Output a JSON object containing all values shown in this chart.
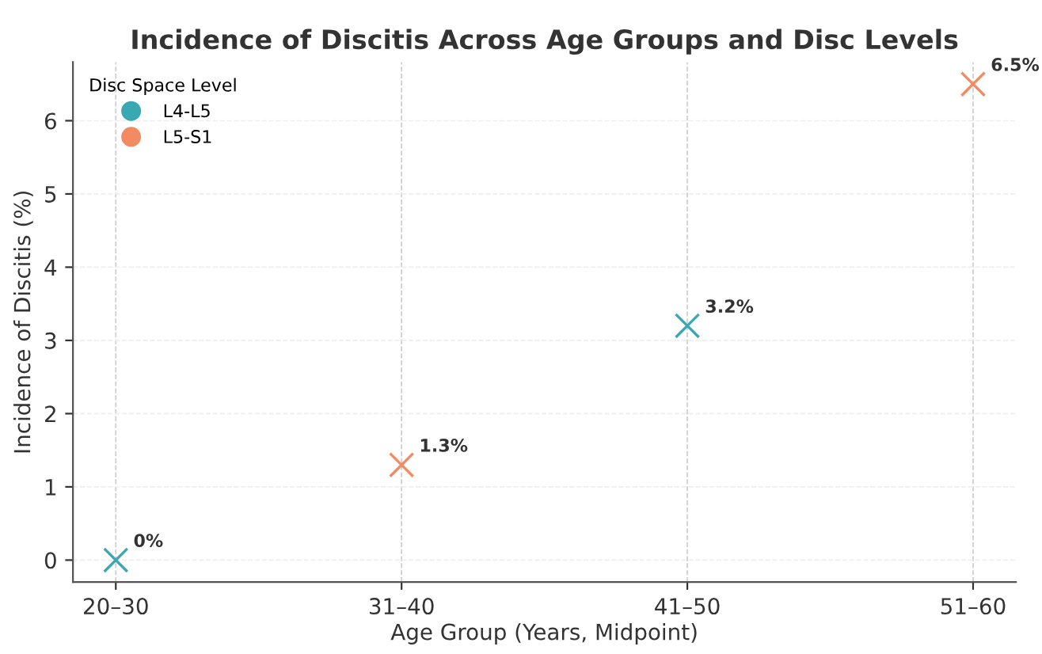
{
  "chart_data": {
    "type": "scatter",
    "title": "Incidence of Discitis Across Age Groups and Disc Levels",
    "xlabel": "Age Group (Years, Midpoint)",
    "ylabel": "Incidence of Discitis (%)",
    "legend_title": "Disc Space Level",
    "categories": [
      "20–30",
      "31–40",
      "41–50",
      "51–60"
    ],
    "series": [
      {
        "name": "L4-L5",
        "color": "#3aa8b2",
        "values": [
          0,
          null,
          3.2,
          null
        ],
        "value_labels": [
          "0%",
          null,
          "3.2%",
          null
        ]
      },
      {
        "name": "L5-S1",
        "color": "#f28a62",
        "values": [
          null,
          1.3,
          null,
          6.5
        ],
        "value_labels": [
          null,
          "1.3%",
          null,
          "6.5%"
        ]
      }
    ],
    "ylim": [
      -0.3,
      6.8
    ],
    "yticks": [
      0,
      1,
      2,
      3,
      4,
      5,
      6
    ],
    "grid": true,
    "legend": "top left",
    "marker": "cross"
  }
}
